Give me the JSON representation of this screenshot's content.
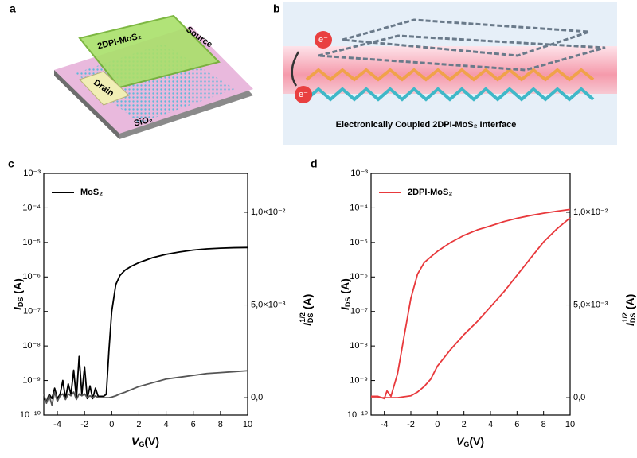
{
  "panels": {
    "a": {
      "label": "a",
      "sheet": "2DPI-MoS₂",
      "source": "Source",
      "drain": "Drain",
      "substrate": "SiO₂"
    },
    "b": {
      "label": "b",
      "electron_top": "e⁻",
      "electron_bottom": "e⁻",
      "caption": "Electronically Coupled 2DPI-MoS₂ Interface"
    }
  },
  "chart_data": [
    {
      "type": "line",
      "panel": "c",
      "log_y": true,
      "xlabel": {
        "main": "V",
        "sub": "G",
        "rest": "(V)"
      },
      "ylabel": {
        "main": "I",
        "sub": "DS",
        "rest": " (A)"
      },
      "y2label": {
        "main": "I",
        "sub": "DS",
        "sup": "1/2",
        "rest": " (A)"
      },
      "xlim": [
        -5,
        10
      ],
      "xticks": [
        -4,
        -2,
        0,
        2,
        4,
        6,
        8,
        10
      ],
      "ylim": [
        1e-10,
        0.001
      ],
      "yticks": [
        {
          "value": 1e-10,
          "label": "10⁻¹⁰"
        },
        {
          "value": 1e-09,
          "label": "10⁻⁹"
        },
        {
          "value": 1e-08,
          "label": "10⁻⁸"
        },
        {
          "value": 1e-07,
          "label": "10⁻⁷"
        },
        {
          "value": 1e-06,
          "label": "10⁻⁶"
        },
        {
          "value": 1e-05,
          "label": "10⁻⁵"
        },
        {
          "value": 0.0001,
          "label": "10⁻⁴"
        },
        {
          "value": 0.001,
          "label": "10⁻³"
        }
      ],
      "y2lim": [
        -0.00094,
        0.0121
      ],
      "y2ticks": [
        {
          "value": 0,
          "label": "0,0"
        },
        {
          "value": 0.005,
          "label": "5,0×10⁻³"
        },
        {
          "value": 0.01,
          "label": "1,0×10⁻²"
        }
      ],
      "legend": "upper left",
      "x": [
        -5,
        -4.8,
        -4.6,
        -4.4,
        -4.2,
        -4,
        -3.8,
        -3.6,
        -3.4,
        -3.2,
        -3,
        -2.8,
        -2.6,
        -2.4,
        -2.2,
        -2,
        -1.8,
        -1.6,
        -1.4,
        -1.2,
        -1,
        -0.8,
        -0.6,
        -0.4,
        -0.2,
        0,
        0.3,
        0.6,
        1,
        1.5,
        2,
        3,
        4,
        5,
        6,
        7,
        8,
        9,
        10
      ],
      "series": [
        {
          "name": "MoS₂",
          "color": "#000000",
          "values": [
            3e-10,
            2.5e-10,
            4e-10,
            3e-10,
            6e-10,
            3e-10,
            4e-10,
            1e-09,
            3e-10,
            8e-10,
            4e-10,
            2e-09,
            3e-10,
            5e-09,
            4e-10,
            2.5e-09,
            3e-10,
            7e-10,
            3e-10,
            6e-10,
            3.5e-10,
            3.5e-10,
            3.5e-10,
            4e-10,
            8e-09,
            1e-07,
            6e-07,
            1.1e-06,
            1.6e-06,
            2.1e-06,
            2.6e-06,
            3.6e-06,
            4.5e-06,
            5.3e-06,
            6e-06,
            6.5e-06,
            6.8e-06,
            7e-06,
            7.1e-06
          ]
        },
        {
          "axis": "y2",
          "color": "#555555",
          "values": [
            0.0002,
            -0.0003,
            0.0001,
            -0.0004,
            0.0003,
            -0.0002,
            0.0001,
            0.0002,
            -0.0001,
            0.0002,
            0.0001,
            0.0003,
            -0.0001,
            0.0002,
            0.0001,
            0.0002,
            0,
            0.0001,
            0,
            0.0001,
            0,
            0,
            0,
            0,
            0,
            3e-05,
            0.0001,
            0.0002,
            0.0003,
            0.00045,
            0.0006,
            0.0008,
            0.001,
            0.0011,
            0.0012,
            0.0013,
            0.00135,
            0.0014,
            0.00145
          ]
        }
      ]
    },
    {
      "type": "line",
      "panel": "d",
      "log_y": true,
      "xlabel": {
        "main": "V",
        "sub": "G",
        "rest": "(V)"
      },
      "ylabel": {
        "main": "I",
        "sub": "DS",
        "rest": " (A)"
      },
      "y2label": {
        "main": "I",
        "sub": "DS",
        "sup": "1/2",
        "rest": " (A)"
      },
      "xlim": [
        -5,
        10
      ],
      "xticks": [
        -4,
        -2,
        0,
        2,
        4,
        6,
        8,
        10
      ],
      "ylim": [
        1e-10,
        0.001
      ],
      "yticks": [
        {
          "value": 1e-10,
          "label": "10⁻¹⁰"
        },
        {
          "value": 1e-09,
          "label": "10⁻⁹"
        },
        {
          "value": 1e-08,
          "label": "10⁻⁸"
        },
        {
          "value": 1e-07,
          "label": "10⁻⁷"
        },
        {
          "value": 1e-06,
          "label": "10⁻⁶"
        },
        {
          "value": 1e-05,
          "label": "10⁻⁵"
        },
        {
          "value": 0.0001,
          "label": "10⁻⁴"
        },
        {
          "value": 0.001,
          "label": "10⁻³"
        }
      ],
      "y2lim": [
        -0.00094,
        0.0121
      ],
      "y2ticks": [
        {
          "value": 0,
          "label": "0,0"
        },
        {
          "value": 0.005,
          "label": "5,0×10⁻³"
        },
        {
          "value": 0.01,
          "label": "1,0×10⁻²"
        }
      ],
      "legend": "upper left",
      "x": [
        -5,
        -4.5,
        -4,
        -3.8,
        -3.5,
        -3,
        -2.5,
        -2,
        -1.5,
        -1,
        -0.5,
        0,
        1,
        2,
        3,
        4,
        5,
        6,
        7,
        8,
        9,
        10
      ],
      "series": [
        {
          "name": "2DPI-MoS₂",
          "color": "#e8393c",
          "values": [
            3.5e-10,
            3.5e-10,
            3e-10,
            5e-10,
            3.5e-10,
            1.6e-09,
            2e-08,
            2.4e-07,
            1.2e-06,
            2.6e-06,
            3.8e-06,
            5.5e-06,
            1e-05,
            1.6e-05,
            2.3e-05,
            3e-05,
            4e-05,
            5e-05,
            6e-05,
            7e-05,
            8e-05,
            9e-05
          ]
        },
        {
          "axis": "y2",
          "color": "#e8393c",
          "values": [
            0,
            0,
            0,
            0,
            0,
            0,
            5e-05,
            0.0001,
            0.0003,
            0.0006,
            0.001,
            0.0017,
            0.0026,
            0.0034,
            0.0041,
            0.0049,
            0.0057,
            0.0066,
            0.0075,
            0.0084,
            0.0091,
            0.0097
          ]
        }
      ]
    }
  ]
}
